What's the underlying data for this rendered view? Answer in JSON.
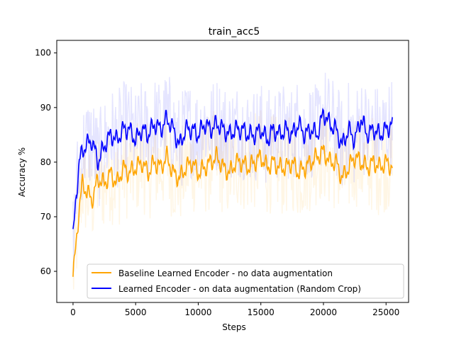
{
  "chart_data": {
    "type": "line",
    "title": "train_acc5",
    "xlabel": "Steps",
    "ylabel": "Accuracy %",
    "xlim": [
      -1300,
      26800
    ],
    "ylim": [
      54.3,
      102.3
    ],
    "xticks": [
      0,
      5000,
      10000,
      15000,
      20000,
      25000
    ],
    "yticks": [
      60,
      70,
      80,
      90,
      100
    ],
    "grid": false,
    "legend_position": "lower-right",
    "series": [
      {
        "name": "Baseline Learned Encoder - no data augmentation",
        "color": "#ffa500",
        "raw_alpha": 0.1,
        "points": [
          [
            0,
            59
          ],
          [
            250,
            65
          ],
          [
            500,
            72
          ],
          [
            750,
            76
          ],
          [
            1000,
            75
          ],
          [
            1500,
            73
          ],
          [
            2000,
            77
          ],
          [
            2500,
            76
          ],
          [
            3000,
            78
          ],
          [
            3500,
            76
          ],
          [
            4000,
            79
          ],
          [
            4500,
            78
          ],
          [
            5000,
            79
          ],
          [
            5500,
            80
          ],
          [
            6000,
            78
          ],
          [
            6500,
            80
          ],
          [
            7000,
            79
          ],
          [
            7500,
            81
          ],
          [
            8000,
            78
          ],
          [
            8500,
            77
          ],
          [
            9000,
            79
          ],
          [
            9500,
            80
          ],
          [
            10000,
            78
          ],
          [
            10500,
            79
          ],
          [
            11000,
            80
          ],
          [
            11500,
            81
          ],
          [
            12000,
            79
          ],
          [
            12500,
            78
          ],
          [
            13000,
            80
          ],
          [
            13500,
            80
          ],
          [
            14000,
            79
          ],
          [
            14500,
            80
          ],
          [
            15000,
            81
          ],
          [
            15500,
            79
          ],
          [
            16000,
            80
          ],
          [
            16500,
            79
          ],
          [
            17000,
            79
          ],
          [
            17500,
            80
          ],
          [
            18000,
            78
          ],
          [
            18500,
            79
          ],
          [
            19000,
            80
          ],
          [
            19500,
            81
          ],
          [
            20000,
            82
          ],
          [
            20500,
            80
          ],
          [
            21000,
            80
          ],
          [
            21500,
            77
          ],
          [
            22000,
            79
          ],
          [
            22500,
            81
          ],
          [
            23000,
            80
          ],
          [
            23500,
            79
          ],
          [
            24000,
            80
          ],
          [
            24500,
            79
          ],
          [
            25000,
            80
          ],
          [
            25500,
            79
          ]
        ]
      },
      {
        "name": "Learned Encoder - on data augmentation (Random Crop)",
        "color": "#0000ff",
        "raw_alpha": 0.1,
        "points": [
          [
            0,
            66
          ],
          [
            250,
            74
          ],
          [
            500,
            80
          ],
          [
            750,
            82
          ],
          [
            1000,
            83
          ],
          [
            1500,
            84
          ],
          [
            2000,
            80
          ],
          [
            2500,
            83
          ],
          [
            3000,
            85
          ],
          [
            3500,
            84
          ],
          [
            4000,
            86
          ],
          [
            4500,
            86
          ],
          [
            5000,
            84
          ],
          [
            5500,
            86
          ],
          [
            6000,
            85
          ],
          [
            6500,
            87
          ],
          [
            7000,
            86
          ],
          [
            7500,
            88
          ],
          [
            8000,
            86
          ],
          [
            8500,
            83
          ],
          [
            9000,
            86
          ],
          [
            9500,
            86
          ],
          [
            10000,
            85
          ],
          [
            10500,
            87
          ],
          [
            11000,
            86
          ],
          [
            11500,
            87
          ],
          [
            12000,
            86
          ],
          [
            12500,
            85
          ],
          [
            13000,
            86
          ],
          [
            13500,
            86
          ],
          [
            14000,
            85
          ],
          [
            14500,
            85
          ],
          [
            15000,
            86
          ],
          [
            15500,
            84
          ],
          [
            16000,
            86
          ],
          [
            16500,
            85
          ],
          [
            17000,
            86
          ],
          [
            17500,
            85
          ],
          [
            18000,
            87
          ],
          [
            18500,
            85
          ],
          [
            19000,
            86
          ],
          [
            19500,
            85
          ],
          [
            20000,
            89
          ],
          [
            20500,
            87
          ],
          [
            21000,
            86
          ],
          [
            21500,
            83
          ],
          [
            22000,
            86
          ],
          [
            22500,
            84
          ],
          [
            23000,
            88
          ],
          [
            23500,
            85
          ],
          [
            24000,
            86
          ],
          [
            24500,
            85
          ],
          [
            25000,
            86
          ],
          [
            25500,
            87
          ]
        ]
      }
    ]
  }
}
